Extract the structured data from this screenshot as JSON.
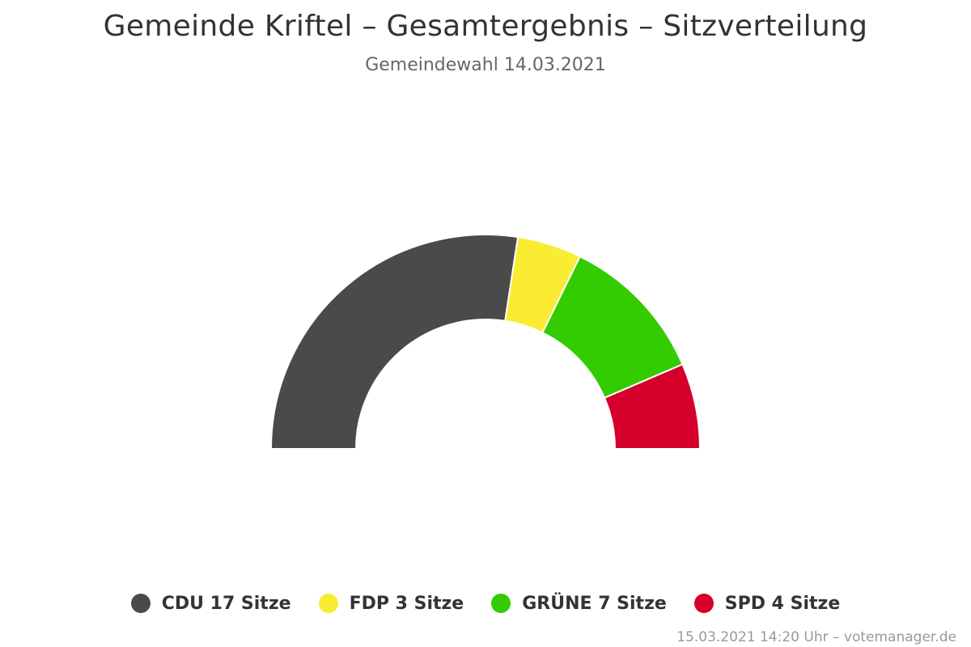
{
  "chart_data": {
    "type": "pie",
    "variant": "semicircle-donut",
    "title": "Gemeinde Kriftel – Gesamtergebnis – Sitzverteilung",
    "subtitle": "Gemeindewahl 14.03.2021",
    "legend_placement": "bottom",
    "series": [
      {
        "name": "CDU",
        "value": 17,
        "color": "#4a4a4a",
        "legend_label": "CDU 17 Sitze"
      },
      {
        "name": "FDP",
        "value": 3,
        "color": "#f9ec32",
        "legend_label": "FDP 3 Sitze"
      },
      {
        "name": "GRÜNE",
        "value": 7,
        "color": "#33cc00",
        "legend_label": "GRÜNE 7 Sitze"
      },
      {
        "name": "SPD",
        "value": 4,
        "color": "#d4002b",
        "legend_label": "SPD 4 Sitze"
      }
    ]
  },
  "credits": "15.03.2021 14:20 Uhr – votemanager.de"
}
